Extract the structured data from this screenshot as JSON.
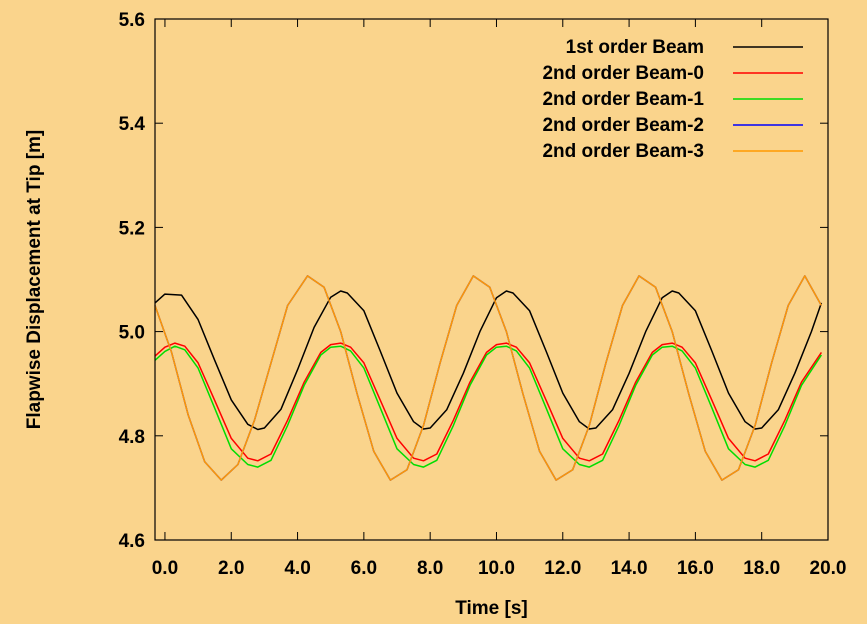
{
  "chart_data": {
    "type": "line",
    "title": "",
    "xlabel": "Time [s]",
    "ylabel": "Flapwise Displacement at Tip [m]",
    "xlim": [
      -0.3,
      20.0
    ],
    "ylim": [
      4.6,
      5.6
    ],
    "xticks": [
      0,
      2,
      4,
      6,
      8,
      10,
      12,
      14,
      16,
      18,
      20
    ],
    "xtick_labels": [
      "0.0",
      "2.0",
      "4.0",
      "6.0",
      "8.0",
      "10.0",
      "12.0",
      "14.0",
      "16.0",
      "18.0",
      "20.0"
    ],
    "yticks": [
      4.6,
      4.8,
      5.0,
      5.2,
      5.4,
      5.6
    ],
    "ytick_labels": [
      "4.6",
      "4.8",
      "5.0",
      "5.2",
      "5.4",
      "5.6"
    ],
    "grid": false,
    "legend_position": "top-right",
    "background": "#fad48c",
    "series": [
      {
        "name": "1st order Beam",
        "color": "#000000",
        "x": [
          -0.3,
          0.0,
          0.5,
          1.0,
          1.5,
          2.0,
          2.5,
          2.8,
          3.0,
          3.5,
          4.0,
          4.5,
          5.0,
          5.3,
          5.5,
          6.0,
          6.5,
          7.0,
          7.5,
          7.8,
          8.0,
          8.5,
          9.0,
          9.5,
          10.0,
          10.3,
          10.5,
          11.0,
          11.5,
          12.0,
          12.5,
          12.8,
          13.0,
          13.5,
          14.0,
          14.5,
          15.0,
          15.3,
          15.5,
          16.0,
          16.5,
          17.0,
          17.5,
          17.8,
          18.0,
          18.5,
          19.0,
          19.5,
          19.8
        ],
        "y": [
          5.055,
          5.072,
          5.07,
          5.023,
          4.945,
          4.869,
          4.822,
          4.812,
          4.815,
          4.851,
          4.927,
          5.008,
          5.066,
          5.078,
          5.074,
          5.04,
          4.962,
          4.882,
          4.827,
          4.813,
          4.815,
          4.85,
          4.92,
          5.0,
          5.065,
          5.078,
          5.074,
          5.04,
          4.962,
          4.882,
          4.827,
          4.813,
          4.815,
          4.85,
          4.92,
          5.0,
          5.065,
          5.078,
          5.074,
          5.04,
          4.962,
          4.882,
          4.827,
          4.813,
          4.815,
          4.85,
          4.92,
          5.0,
          5.055
        ]
      },
      {
        "name": "2nd order Beam-0",
        "color": "#ff0000",
        "x": [
          -0.3,
          0.0,
          0.3,
          0.6,
          1.0,
          1.5,
          2.0,
          2.5,
          2.8,
          3.2,
          3.7,
          4.2,
          4.7,
          5.0,
          5.3,
          5.6,
          6.0,
          6.5,
          7.0,
          7.5,
          7.8,
          8.2,
          8.7,
          9.2,
          9.7,
          10.0,
          10.3,
          10.6,
          11.0,
          11.5,
          12.0,
          12.5,
          12.8,
          13.2,
          13.7,
          14.2,
          14.7,
          15.0,
          15.3,
          15.6,
          16.0,
          16.5,
          17.0,
          17.5,
          17.8,
          18.2,
          18.7,
          19.2,
          19.8
        ],
        "y": [
          4.953,
          4.97,
          4.978,
          4.972,
          4.94,
          4.868,
          4.795,
          4.757,
          4.752,
          4.765,
          4.83,
          4.903,
          4.96,
          4.975,
          4.978,
          4.97,
          4.94,
          4.868,
          4.795,
          4.757,
          4.752,
          4.765,
          4.83,
          4.903,
          4.96,
          4.975,
          4.978,
          4.97,
          4.94,
          4.868,
          4.795,
          4.757,
          4.752,
          4.765,
          4.83,
          4.903,
          4.96,
          4.975,
          4.978,
          4.97,
          4.94,
          4.868,
          4.795,
          4.757,
          4.752,
          4.765,
          4.83,
          4.903,
          4.96
        ]
      },
      {
        "name": "2nd order Beam-1",
        "color": "#00dd00",
        "x": [
          -0.3,
          0.0,
          0.3,
          0.6,
          1.0,
          1.5,
          2.0,
          2.5,
          2.8,
          3.2,
          3.7,
          4.2,
          4.7,
          5.0,
          5.3,
          5.6,
          6.0,
          6.5,
          7.0,
          7.5,
          7.8,
          8.2,
          8.7,
          9.2,
          9.7,
          10.0,
          10.3,
          10.6,
          11.0,
          11.5,
          12.0,
          12.5,
          12.8,
          13.2,
          13.7,
          14.2,
          14.7,
          15.0,
          15.3,
          15.6,
          16.0,
          16.5,
          17.0,
          17.5,
          17.8,
          18.2,
          18.7,
          19.2,
          19.8
        ],
        "y": [
          4.945,
          4.962,
          4.972,
          4.965,
          4.93,
          4.853,
          4.775,
          4.745,
          4.74,
          4.753,
          4.82,
          4.897,
          4.955,
          4.97,
          4.972,
          4.963,
          4.93,
          4.853,
          4.775,
          4.745,
          4.74,
          4.753,
          4.82,
          4.897,
          4.955,
          4.97,
          4.972,
          4.963,
          4.93,
          4.853,
          4.775,
          4.745,
          4.74,
          4.753,
          4.82,
          4.897,
          4.955,
          4.97,
          4.972,
          4.963,
          4.93,
          4.853,
          4.775,
          4.745,
          4.74,
          4.753,
          4.82,
          4.897,
          4.955
        ]
      },
      {
        "name": "2nd order Beam-2",
        "color": "#0000ff",
        "x": [
          -0.3,
          0.2,
          0.7,
          1.2,
          1.7,
          2.2,
          2.7,
          3.2,
          3.7,
          4.3,
          4.8,
          5.3,
          5.8,
          6.3,
          6.8,
          7.3,
          7.8,
          8.3,
          8.8,
          9.3,
          9.8,
          10.3,
          10.8,
          11.3,
          11.8,
          12.3,
          12.8,
          13.3,
          13.8,
          14.3,
          14.8,
          15.3,
          15.8,
          16.3,
          16.8,
          17.3,
          17.8,
          18.3,
          18.8,
          19.3,
          19.8
        ],
        "y": [
          5.05,
          4.96,
          4.84,
          4.75,
          4.715,
          4.745,
          4.83,
          4.94,
          5.05,
          5.107,
          5.085,
          5.0,
          4.88,
          4.77,
          4.715,
          4.735,
          4.82,
          4.94,
          5.05,
          5.107,
          5.085,
          5.0,
          4.88,
          4.77,
          4.715,
          4.735,
          4.82,
          4.94,
          5.05,
          5.107,
          5.085,
          5.0,
          4.88,
          4.77,
          4.715,
          4.735,
          4.82,
          4.94,
          5.05,
          5.107,
          5.05
        ]
      },
      {
        "name": "2nd order Beam-3",
        "color": "#ff9900",
        "x": [
          -0.3,
          0.2,
          0.7,
          1.2,
          1.7,
          2.2,
          2.7,
          3.2,
          3.7,
          4.3,
          4.8,
          5.3,
          5.8,
          6.3,
          6.8,
          7.3,
          7.8,
          8.3,
          8.8,
          9.3,
          9.8,
          10.3,
          10.8,
          11.3,
          11.8,
          12.3,
          12.8,
          13.3,
          13.8,
          14.3,
          14.8,
          15.3,
          15.8,
          16.3,
          16.8,
          17.3,
          17.8,
          18.3,
          18.8,
          19.3,
          19.8
        ],
        "y": [
          5.05,
          4.96,
          4.84,
          4.75,
          4.715,
          4.745,
          4.83,
          4.94,
          5.05,
          5.107,
          5.085,
          5.0,
          4.88,
          4.77,
          4.715,
          4.735,
          4.82,
          4.94,
          5.05,
          5.107,
          5.085,
          5.0,
          4.88,
          4.77,
          4.715,
          4.735,
          4.82,
          4.94,
          5.05,
          5.107,
          5.085,
          5.0,
          4.88,
          4.77,
          4.715,
          4.735,
          4.82,
          4.94,
          5.05,
          5.107,
          5.05
        ]
      }
    ]
  }
}
